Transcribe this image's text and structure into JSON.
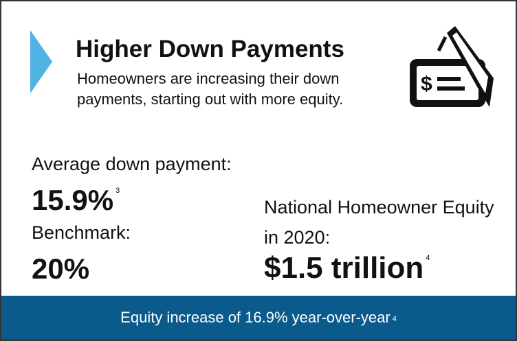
{
  "header": {
    "title": "Higher Down Payments",
    "description": "Homeowners are increasing their down payments, starting out with more equity."
  },
  "stats": [
    {
      "label": "Average down payment:",
      "value": "15.9%",
      "note": "3"
    },
    {
      "label": "Benchmark:",
      "value": "20%"
    },
    {
      "label": "National Homeowner Equity in 2020:",
      "value": "$1.5 trillion",
      "note": "4"
    }
  ],
  "footer": {
    "text": "Equity increase of 16.9% year-over-year",
    "note": "4"
  }
}
